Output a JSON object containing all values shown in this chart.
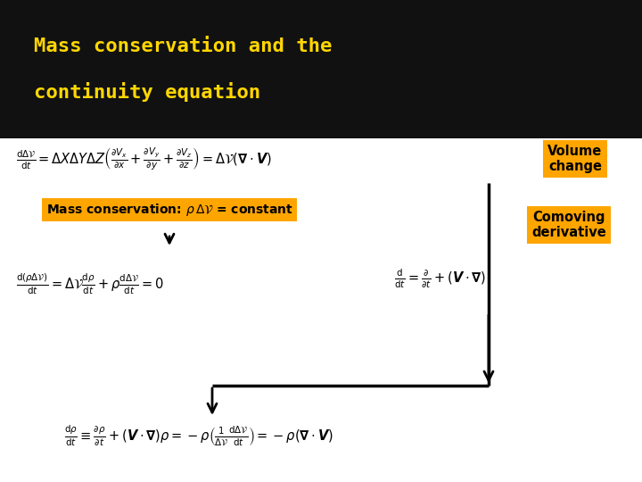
{
  "title_line1": "Mass conservation and the",
  "title_line2": "continuity equation",
  "title_color": "#FFD700",
  "header_bg_color": "#111111",
  "bg_color": "#ffffff",
  "label_bg_color": "#FFA500",
  "label_text_color": "#000000",
  "label_volume": "Volume\nchange",
  "label_comoving": "Comoving\nderivative",
  "fig_width": 7.2,
  "fig_height": 5.4,
  "dpi": 100
}
